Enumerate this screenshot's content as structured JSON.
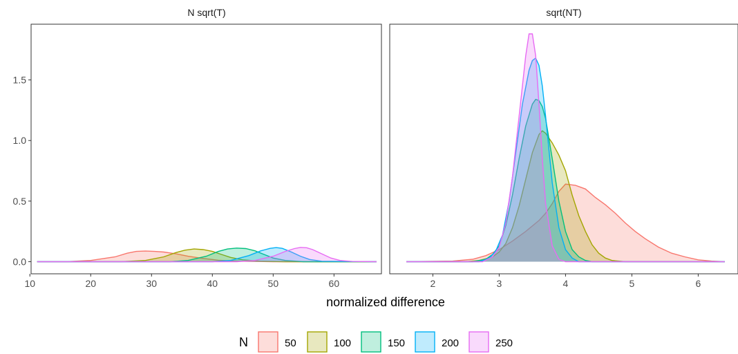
{
  "chart_data": {
    "type": "area",
    "xlabel": "normalized difference",
    "ylabel": "",
    "ylim": [
      -0.1,
      1.96
    ],
    "yticks": [
      "0.0",
      "0.5",
      "1.0",
      "1.5"
    ],
    "grid": false,
    "legend": {
      "title": "N",
      "position": "bottom",
      "items": [
        {
          "label": "50",
          "color": "#F8766D"
        },
        {
          "label": "100",
          "color": "#A3A500"
        },
        {
          "label": "150",
          "color": "#00BF7D"
        },
        {
          "label": "200",
          "color": "#00B0F6"
        },
        {
          "label": "250",
          "color": "#E76BF3"
        }
      ]
    },
    "panels": [
      {
        "title": "N sqrt(T)",
        "xlim": [
          10.2,
          67.8
        ],
        "xticks": [
          "10",
          "20",
          "30",
          "40",
          "50",
          "60"
        ],
        "series": [
          {
            "name": "50",
            "color": "#F8766D",
            "x": [
              11.2,
              16,
              20,
              24,
              26,
              27.5,
              29,
              30.5,
              32,
              34,
              36,
              38,
              41,
              45,
              50,
              67
            ],
            "y": [
              0,
              0,
              0.01,
              0.04,
              0.07,
              0.085,
              0.088,
              0.085,
              0.08,
              0.065,
              0.045,
              0.03,
              0.012,
              0.003,
              0,
              0
            ]
          },
          {
            "name": "100",
            "color": "#A3A500",
            "x": [
              11.2,
              25,
              29,
              32,
              34,
              35.5,
              37,
              38.5,
              40,
              41.5,
              43,
              45,
              48,
              52,
              67
            ],
            "y": [
              0,
              0,
              0.01,
              0.04,
              0.075,
              0.095,
              0.105,
              0.1,
              0.085,
              0.06,
              0.035,
              0.015,
              0.004,
              0,
              0
            ]
          },
          {
            "name": "150",
            "color": "#00BF7D",
            "x": [
              11.2,
              33,
              36,
              39,
              41,
              42.5,
              44,
              45.5,
              47,
              48.5,
              50,
              52,
              55,
              67
            ],
            "y": [
              0,
              0,
              0.01,
              0.045,
              0.085,
              0.105,
              0.112,
              0.108,
              0.09,
              0.06,
              0.03,
              0.01,
              0,
              0
            ]
          },
          {
            "name": "200",
            "color": "#00B0F6",
            "x": [
              11.2,
              40,
              43,
              46,
              48,
              49.5,
              50.5,
              51.5,
              53,
              54.5,
              56,
              58,
              67
            ],
            "y": [
              0,
              0,
              0.01,
              0.05,
              0.09,
              0.11,
              0.116,
              0.11,
              0.08,
              0.045,
              0.018,
              0.004,
              0
            ]
          },
          {
            "name": "250",
            "color": "#E76BF3",
            "x": [
              11.2,
              44,
              47,
              50,
              52,
              53.5,
              54.5,
              55.5,
              56.5,
              58,
              59.5,
              61,
              63,
              67
            ],
            "y": [
              0,
              0,
              0.01,
              0.045,
              0.085,
              0.108,
              0.118,
              0.115,
              0.1,
              0.065,
              0.03,
              0.01,
              0.002,
              0
            ]
          }
        ]
      },
      {
        "title": "sqrt(NT)",
        "xlim": [
          1.35,
          6.6
        ],
        "xticks": [
          "2",
          "3",
          "4",
          "5",
          "6"
        ],
        "series": [
          {
            "name": "50",
            "color": "#F8766D",
            "x": [
              1.6,
              2.3,
              2.6,
              2.8,
              3.0,
              3.2,
              3.4,
              3.6,
              3.7,
              3.8,
              3.9,
              4.0,
              4.15,
              4.3,
              4.45,
              4.6,
              4.75,
              4.9,
              5.05,
              5.2,
              5.4,
              5.6,
              5.8,
              6.0,
              6.2,
              6.4
            ],
            "y": [
              0,
              0.005,
              0.02,
              0.05,
              0.1,
              0.17,
              0.25,
              0.34,
              0.4,
              0.48,
              0.58,
              0.64,
              0.63,
              0.6,
              0.53,
              0.47,
              0.4,
              0.32,
              0.25,
              0.19,
              0.12,
              0.07,
              0.04,
              0.015,
              0.005,
              0
            ]
          },
          {
            "name": "100",
            "color": "#A3A500",
            "x": [
              1.6,
              2.5,
              2.7,
              2.9,
              3.0,
              3.1,
              3.2,
              3.3,
              3.4,
              3.5,
              3.6,
              3.65,
              3.7,
              3.8,
              3.9,
              4.0,
              4.1,
              4.2,
              4.3,
              4.4,
              4.5,
              4.6,
              4.7,
              4.9,
              6.4
            ],
            "y": [
              0,
              0,
              0.01,
              0.04,
              0.08,
              0.15,
              0.28,
              0.46,
              0.68,
              0.9,
              1.05,
              1.08,
              1.06,
              0.98,
              0.88,
              0.75,
              0.55,
              0.38,
              0.25,
              0.14,
              0.07,
              0.03,
              0.01,
              0,
              0
            ]
          },
          {
            "name": "150",
            "color": "#00BF7D",
            "x": [
              1.6,
              2.6,
              2.8,
              2.9,
              3.0,
              3.1,
              3.2,
              3.3,
              3.4,
              3.5,
              3.55,
              3.6,
              3.65,
              3.7,
              3.8,
              3.9,
              4.0,
              4.1,
              4.2,
              4.3,
              4.4,
              6.4
            ],
            "y": [
              0,
              0,
              0.02,
              0.06,
              0.13,
              0.3,
              0.55,
              0.85,
              1.12,
              1.3,
              1.34,
              1.33,
              1.28,
              1.18,
              0.85,
              0.5,
              0.25,
              0.1,
              0.04,
              0.01,
              0,
              0
            ]
          },
          {
            "name": "200",
            "color": "#00B0F6",
            "x": [
              1.6,
              2.7,
              2.85,
              2.95,
              3.05,
              3.15,
              3.25,
              3.35,
              3.45,
              3.5,
              3.55,
              3.6,
              3.65,
              3.7,
              3.8,
              3.9,
              4.0,
              4.1,
              4.2,
              6.4
            ],
            "y": [
              0,
              0,
              0.03,
              0.09,
              0.22,
              0.5,
              0.9,
              1.3,
              1.58,
              1.66,
              1.68,
              1.62,
              1.45,
              1.2,
              0.65,
              0.28,
              0.1,
              0.03,
              0,
              0
            ]
          },
          {
            "name": "250",
            "color": "#E76BF3",
            "x": [
              1.6,
              2.75,
              2.9,
              3.0,
              3.1,
              3.2,
              3.3,
              3.4,
              3.45,
              3.5,
              3.55,
              3.6,
              3.65,
              3.7,
              3.8,
              3.9,
              4.0,
              6.4
            ],
            "y": [
              0,
              0,
              0.04,
              0.12,
              0.32,
              0.7,
              1.2,
              1.7,
              1.88,
              1.88,
              1.7,
              1.3,
              0.85,
              0.48,
              0.13,
              0.02,
              0,
              0
            ]
          }
        ]
      }
    ]
  }
}
